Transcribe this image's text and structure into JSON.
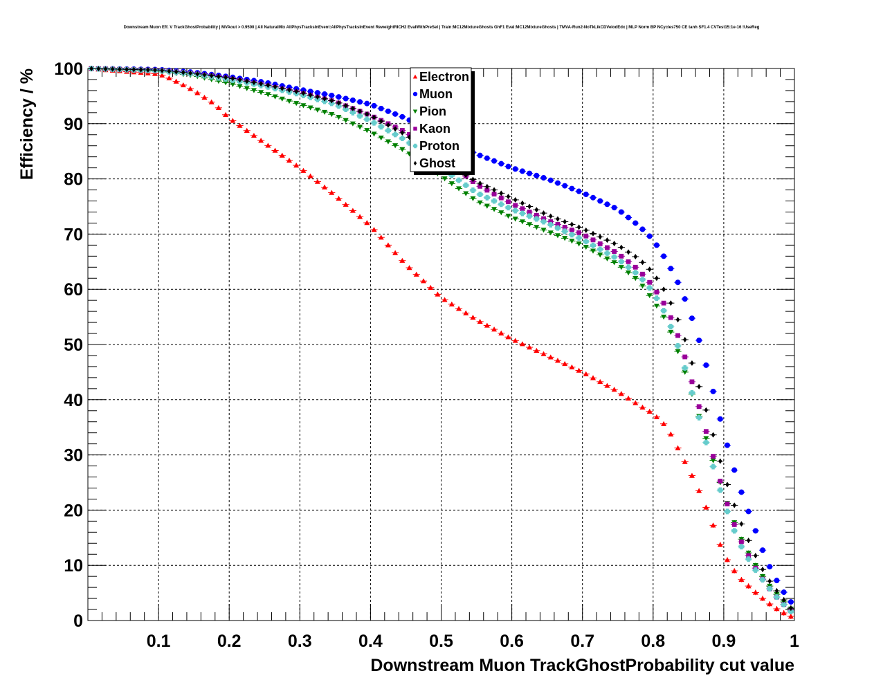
{
  "chart_data": {
    "type": "scatter",
    "title": "Downstream Muon Eff. V TrackGhostProbability | MVAout > 0.9500 | All NaturalMix AllPhysTracksInEvent:AllPhysTracksInEvent ReweightRICH2 EvalWithPreSel | Train:MC12MixtureGhosts GhF1 Eval:MC12MixtureGhosts | TMVA-Run2-NoTkLikCDVelodEdx | MLP Norm BP NCycles750 CE tanh SF1.4 CVTest15:1e-16 !UseReg",
    "xlabel": "Downstream Muon TrackGhostProbability cut value",
    "ylabel": "Efficiency / %",
    "xlim": [
      0,
      1
    ],
    "ylim": [
      0,
      100
    ],
    "xticks": [
      0.1,
      0.2,
      0.3,
      0.4,
      0.5,
      0.6,
      0.7,
      0.8,
      0.9,
      1
    ],
    "xtick_labels": [
      "0.1",
      "0.2",
      "0.3",
      "0.4",
      "0.5",
      "0.6",
      "0.7",
      "0.8",
      "0.9",
      "1"
    ],
    "yticks": [
      0,
      10,
      20,
      30,
      40,
      50,
      60,
      70,
      80,
      90,
      100
    ],
    "ytick_labels": [
      "0",
      "10",
      "20",
      "30",
      "40",
      "50",
      "60",
      "70",
      "80",
      "90",
      "100"
    ],
    "grid": true,
    "legend_position": "top-center",
    "legend": [
      {
        "name": "Electron",
        "color": "#ff0000",
        "marker": "triangle-up"
      },
      {
        "name": "Muon",
        "color": "#0000ff",
        "marker": "circle"
      },
      {
        "name": "Pion",
        "color": "#008000",
        "marker": "triangle-down"
      },
      {
        "name": "Kaon",
        "color": "#990099",
        "marker": "square"
      },
      {
        "name": "Proton",
        "color": "#66cccc",
        "marker": "cross"
      },
      {
        "name": "Ghost",
        "color": "#000000",
        "marker": "diamond"
      }
    ],
    "series": [
      {
        "name": "Electron",
        "key": [
          [
            0.0,
            100
          ],
          [
            0.1,
            99.0
          ],
          [
            0.12,
            98.0
          ],
          [
            0.15,
            96.0
          ],
          [
            0.18,
            93.5
          ],
          [
            0.2,
            91.0
          ],
          [
            0.25,
            86.5
          ],
          [
            0.3,
            82.0
          ],
          [
            0.35,
            77.0
          ],
          [
            0.4,
            71.5
          ],
          [
            0.45,
            64.5
          ],
          [
            0.5,
            58.5
          ],
          [
            0.55,
            54.5
          ],
          [
            0.6,
            51.0
          ],
          [
            0.65,
            48.0
          ],
          [
            0.7,
            45.0
          ],
          [
            0.75,
            41.5
          ],
          [
            0.78,
            39.0
          ],
          [
            0.8,
            37.5
          ],
          [
            0.82,
            35.0
          ],
          [
            0.84,
            30.0
          ],
          [
            0.86,
            25.0
          ],
          [
            0.88,
            19.0
          ],
          [
            0.9,
            12.0
          ],
          [
            0.92,
            8.0
          ],
          [
            0.95,
            4.5
          ],
          [
            0.97,
            2.5
          ],
          [
            0.99,
            1.0
          ],
          [
            1.0,
            0.5
          ]
        ]
      },
      {
        "name": "Muon",
        "key": [
          [
            0.0,
            100
          ],
          [
            0.1,
            99.8
          ],
          [
            0.15,
            99.3
          ],
          [
            0.2,
            98.5
          ],
          [
            0.25,
            97.5
          ],
          [
            0.3,
            96.2
          ],
          [
            0.35,
            95.0
          ],
          [
            0.4,
            93.5
          ],
          [
            0.45,
            91.0
          ],
          [
            0.5,
            87.5
          ],
          [
            0.55,
            84.5
          ],
          [
            0.6,
            82.0
          ],
          [
            0.65,
            80.0
          ],
          [
            0.7,
            77.5
          ],
          [
            0.75,
            74.5
          ],
          [
            0.78,
            71.5
          ],
          [
            0.8,
            69.0
          ],
          [
            0.82,
            65.0
          ],
          [
            0.84,
            60.0
          ],
          [
            0.86,
            53.0
          ],
          [
            0.88,
            44.0
          ],
          [
            0.9,
            34.0
          ],
          [
            0.92,
            25.0
          ],
          [
            0.94,
            18.0
          ],
          [
            0.96,
            11.0
          ],
          [
            0.98,
            6.0
          ],
          [
            1.0,
            2.5
          ]
        ]
      },
      {
        "name": "Pion",
        "key": [
          [
            0.0,
            100
          ],
          [
            0.1,
            99.5
          ],
          [
            0.15,
            98.7
          ],
          [
            0.2,
            97.3
          ],
          [
            0.25,
            95.5
          ],
          [
            0.3,
            93.5
          ],
          [
            0.35,
            91.5
          ],
          [
            0.4,
            88.5
          ],
          [
            0.45,
            85.0
          ],
          [
            0.5,
            80.5
          ],
          [
            0.55,
            76.0
          ],
          [
            0.6,
            73.0
          ],
          [
            0.65,
            70.5
          ],
          [
            0.7,
            68.0
          ],
          [
            0.75,
            64.5
          ],
          [
            0.78,
            61.5
          ],
          [
            0.8,
            58.0
          ],
          [
            0.82,
            54.0
          ],
          [
            0.84,
            47.0
          ],
          [
            0.86,
            39.0
          ],
          [
            0.88,
            31.0
          ],
          [
            0.9,
            23.0
          ],
          [
            0.92,
            16.0
          ],
          [
            0.94,
            11.0
          ],
          [
            0.96,
            7.0
          ],
          [
            0.98,
            4.0
          ],
          [
            1.0,
            1.5
          ]
        ]
      },
      {
        "name": "Kaon",
        "key": [
          [
            0.0,
            100
          ],
          [
            0.1,
            99.7
          ],
          [
            0.15,
            99.1
          ],
          [
            0.2,
            98.2
          ],
          [
            0.25,
            97.0
          ],
          [
            0.3,
            95.6
          ],
          [
            0.35,
            94.0
          ],
          [
            0.4,
            91.5
          ],
          [
            0.45,
            88.5
          ],
          [
            0.5,
            84.0
          ],
          [
            0.55,
            79.0
          ],
          [
            0.6,
            75.5
          ],
          [
            0.65,
            72.5
          ],
          [
            0.7,
            70.0
          ],
          [
            0.75,
            66.5
          ],
          [
            0.78,
            63.5
          ],
          [
            0.8,
            60.5
          ],
          [
            0.82,
            56.5
          ],
          [
            0.84,
            50.0
          ],
          [
            0.86,
            41.0
          ],
          [
            0.88,
            32.0
          ],
          [
            0.9,
            23.0
          ],
          [
            0.92,
            15.5
          ],
          [
            0.94,
            10.5
          ],
          [
            0.96,
            6.5
          ],
          [
            0.98,
            3.5
          ],
          [
            1.0,
            1.2
          ]
        ]
      },
      {
        "name": "Proton",
        "key": [
          [
            0.0,
            100
          ],
          [
            0.1,
            99.6
          ],
          [
            0.15,
            99.0
          ],
          [
            0.2,
            98.0
          ],
          [
            0.25,
            96.8
          ],
          [
            0.3,
            95.3
          ],
          [
            0.35,
            93.5
          ],
          [
            0.4,
            90.5
          ],
          [
            0.45,
            87.0
          ],
          [
            0.5,
            82.0
          ],
          [
            0.55,
            77.5
          ],
          [
            0.6,
            74.5
          ],
          [
            0.65,
            72.0
          ],
          [
            0.7,
            69.0
          ],
          [
            0.75,
            65.5
          ],
          [
            0.78,
            62.5
          ],
          [
            0.8,
            59.5
          ],
          [
            0.82,
            55.0
          ],
          [
            0.84,
            48.0
          ],
          [
            0.86,
            39.0
          ],
          [
            0.88,
            30.0
          ],
          [
            0.9,
            21.5
          ],
          [
            0.92,
            14.5
          ],
          [
            0.94,
            10.0
          ],
          [
            0.96,
            6.5
          ],
          [
            0.98,
            3.5
          ],
          [
            1.0,
            1.0
          ]
        ]
      },
      {
        "name": "Ghost",
        "key": [
          [
            0.0,
            100
          ],
          [
            0.1,
            99.7
          ],
          [
            0.15,
            99.1
          ],
          [
            0.2,
            98.3
          ],
          [
            0.25,
            97.1
          ],
          [
            0.3,
            95.7
          ],
          [
            0.35,
            94.0
          ],
          [
            0.4,
            91.5
          ],
          [
            0.45,
            88.0
          ],
          [
            0.5,
            83.5
          ],
          [
            0.55,
            79.5
          ],
          [
            0.6,
            76.5
          ],
          [
            0.65,
            73.5
          ],
          [
            0.7,
            71.0
          ],
          [
            0.75,
            68.0
          ],
          [
            0.78,
            65.5
          ],
          [
            0.8,
            63.0
          ],
          [
            0.82,
            59.0
          ],
          [
            0.84,
            53.0
          ],
          [
            0.86,
            44.5
          ],
          [
            0.88,
            36.0
          ],
          [
            0.9,
            26.5
          ],
          [
            0.92,
            19.0
          ],
          [
            0.94,
            13.0
          ],
          [
            0.96,
            8.0
          ],
          [
            0.98,
            4.5
          ],
          [
            1.0,
            1.5
          ]
        ]
      }
    ]
  }
}
